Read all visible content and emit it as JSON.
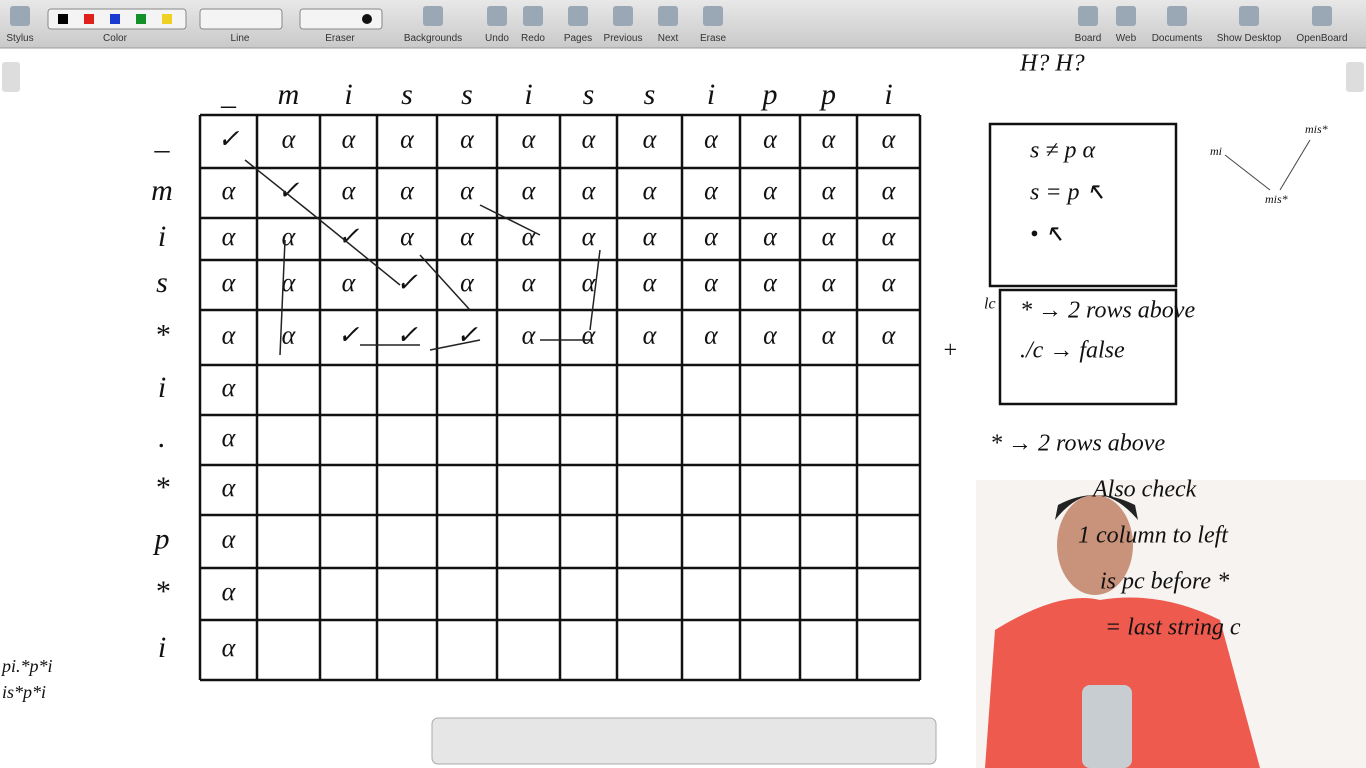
{
  "toolbar": {
    "items": [
      "Stylus",
      "Color",
      "Line",
      "Eraser",
      "Backgrounds",
      "Undo",
      "Redo",
      "Pages",
      "Previous",
      "Next",
      "Erase",
      "Board",
      "Web",
      "Documents",
      "Show Desktop",
      "OpenBoard"
    ]
  },
  "board": {
    "top_note": "H? H?",
    "column_headers": [
      "_",
      "m",
      "i",
      "s",
      "s",
      "i",
      "s",
      "s",
      "i",
      "p",
      "p",
      "i"
    ],
    "row_headers": [
      "_",
      "m",
      "i",
      "s",
      "*",
      "i",
      ".",
      "*",
      "p",
      "*",
      "i"
    ],
    "table": {
      "rows": [
        [
          "✓",
          "α",
          "α",
          "α",
          "α",
          "α",
          "α",
          "α",
          "α",
          "α",
          "α",
          "α"
        ],
        [
          "α",
          "✓",
          "α",
          "α",
          "α",
          "α",
          "α",
          "α",
          "α",
          "α",
          "α",
          "α"
        ],
        [
          "α",
          "α",
          "✓",
          "α",
          "α",
          "α",
          "α",
          "α",
          "α",
          "α",
          "α",
          "α"
        ],
        [
          "α",
          "α",
          "α",
          "✓",
          "α",
          "α",
          "α",
          "α",
          "α",
          "α",
          "α",
          "α"
        ],
        [
          "α",
          "α",
          "✓",
          "✓",
          "✓",
          "α",
          "α",
          "α",
          "α",
          "α",
          "α",
          "α"
        ],
        [
          "α"
        ],
        [
          "α"
        ],
        [
          "α"
        ],
        [
          "α"
        ],
        [
          "α"
        ],
        [
          "α"
        ]
      ]
    },
    "box1": [
      "s ≠ p   α",
      "s = p   ↖",
      "•          ↖"
    ],
    "box2_label": "lc",
    "box2": [
      "* → 2 rows above",
      "./c → false"
    ],
    "plus": "+",
    "notes": [
      "* → 2 rows above",
      "Also check",
      "1 column to left",
      "is pc before *",
      "= last string c"
    ],
    "side_tree": [
      "mis*",
      "mi",
      "mis*"
    ],
    "bottom_left": [
      "pi.*p*i",
      "is*p*i"
    ]
  }
}
